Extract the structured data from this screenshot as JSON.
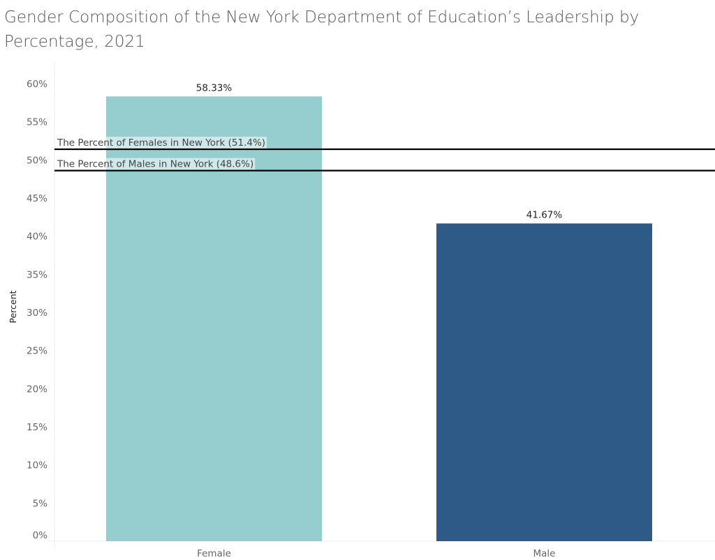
{
  "chart_data": {
    "type": "bar",
    "title": "Gender Composition of the New York Department of Education’s Leadership by Percentage, 2021",
    "xlabel": "",
    "ylabel": "Percent",
    "categories": [
      "Female",
      "Male"
    ],
    "values": [
      58.33,
      41.67
    ],
    "data_labels": [
      "58.33%",
      "41.67%"
    ],
    "colors": [
      "#96cdcf",
      "#2e5a87"
    ],
    "ylim": [
      0,
      60
    ],
    "yticks": [
      0,
      5,
      10,
      15,
      20,
      25,
      30,
      35,
      40,
      45,
      50,
      55,
      60
    ],
    "ytick_labels": [
      "0%",
      "5%",
      "10%",
      "15%",
      "20%",
      "25%",
      "30%",
      "35%",
      "40%",
      "45%",
      "50%",
      "55%",
      "60%"
    ],
    "grid": false,
    "reference_lines": [
      {
        "value": 51.4,
        "label": "The Percent of Females in New York (51.4%)",
        "color": "#000000"
      },
      {
        "value": 48.6,
        "label": "The Percent of Males in New York (48.6%)",
        "color": "#000000"
      }
    ]
  }
}
